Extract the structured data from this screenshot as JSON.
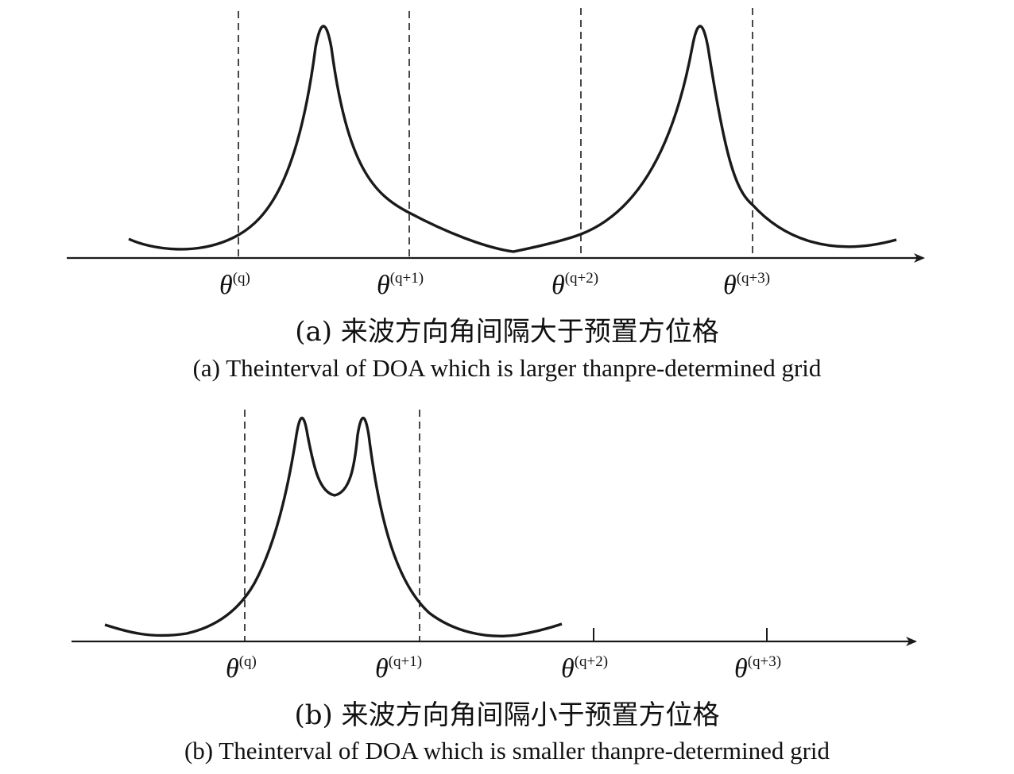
{
  "panels": [
    {
      "id": "a",
      "grid_labels": [
        {
          "symbol": "θ",
          "superscript": "(q)"
        },
        {
          "symbol": "θ",
          "superscript": "(q+1)"
        },
        {
          "symbol": "θ",
          "superscript": "(q+2)"
        },
        {
          "symbol": "θ",
          "superscript": "(q+3)"
        }
      ],
      "caption_cn": "(a) 来波方向角间隔大于预置方位格",
      "caption_en": "(a) Theinterval of DOA which is larger thanpre-determined grid",
      "dashed_grid_lines": 4,
      "spectrum_peaks": 2,
      "peaks_resolved": true
    },
    {
      "id": "b",
      "grid_labels": [
        {
          "symbol": "θ",
          "superscript": "(q)"
        },
        {
          "symbol": "θ",
          "superscript": "(q+1)"
        },
        {
          "symbol": "θ",
          "superscript": "(q+2)"
        },
        {
          "symbol": "θ",
          "superscript": "(q+3)"
        }
      ],
      "caption_cn": "(b) 来波方向角间隔小于预置方位格",
      "caption_en": "(b) Theinterval of DOA which is smaller thanpre-determined grid",
      "dashed_grid_lines": 2,
      "spectrum_peaks": 2,
      "peaks_resolved": false
    }
  ],
  "colors": {
    "line": "#1a1a1a",
    "background": "#ffffff"
  }
}
